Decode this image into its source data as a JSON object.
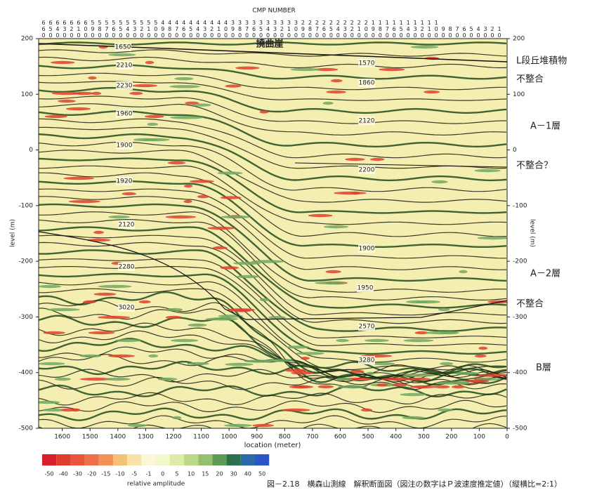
{
  "chart_data": {
    "type": "seismic-section",
    "cmp_title": "CMP NUMBER",
    "cmp_numbers": [
      660,
      650,
      640,
      630,
      620,
      610,
      600,
      590,
      580,
      570,
      560,
      550,
      540,
      530,
      520,
      510,
      500,
      490,
      480,
      470,
      460,
      450,
      440,
      430,
      420,
      410,
      400,
      390,
      380,
      370,
      360,
      350,
      340,
      330,
      320,
      310,
      300,
      290,
      280,
      270,
      260,
      250,
      240,
      230,
      220,
      210,
      200,
      190,
      180,
      170,
      160,
      150,
      140,
      130,
      120,
      110,
      100,
      90,
      80,
      70,
      60,
      50,
      40,
      30,
      20,
      10
    ],
    "xlabel": "location (meter)",
    "ylabel": "level (m)",
    "xlim": [
      1685,
      0
    ],
    "xticks": [
      1600,
      1500,
      1400,
      1300,
      1200,
      1100,
      1000,
      900,
      800,
      700,
      600,
      500,
      400,
      300,
      200,
      100,
      0
    ],
    "ylim": [
      -500,
      200
    ],
    "yticks": [
      200,
      100,
      0,
      -100,
      -200,
      -300,
      -400,
      -500
    ],
    "annotation": "撓曲崖",
    "velocity_labels": [
      1650,
      2210,
      2230,
      1960,
      1900,
      1920,
      2120,
      2280,
      3020,
      1570,
      1860,
      2120,
      2200,
      1900,
      1950,
      2570,
      3280
    ],
    "layer_labels": [
      "L段丘堆積物",
      "不整合",
      "A－1層",
      "不整合？",
      "A－2層",
      "不整合",
      "B層"
    ],
    "colorbar": {
      "ticks": [
        -50,
        -40,
        -30,
        -20,
        -15,
        -10,
        -5,
        -1,
        0,
        5,
        10,
        15,
        20,
        30,
        40,
        50
      ],
      "colors": [
        "#d8202a",
        "#e23a30",
        "#e8553a",
        "#ee7048",
        "#f29258",
        "#f6c078",
        "#f7e2a8",
        "#fbf6d8",
        "#f4f7cc",
        "#dcebaa",
        "#bcd88a",
        "#96c070",
        "#5e9a58",
        "#2e7048",
        "#2a6aa8",
        "#2c56c8"
      ],
      "label": "relative amplitude"
    },
    "caption": "図－2.18　横森山測線　解釈断面図（図注の数字はＰ波速度推定値）（縦横比=2:1）"
  }
}
